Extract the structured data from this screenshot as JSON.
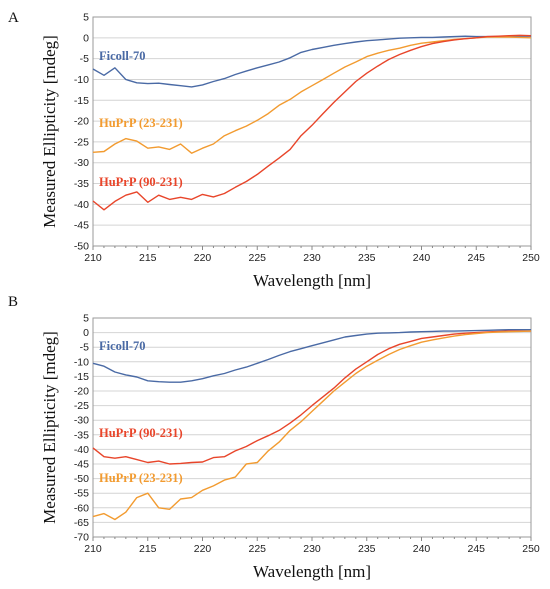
{
  "chart_data": [
    {
      "panel": "A",
      "type": "line",
      "xlabel": "Wavelength [nm]",
      "ylabel": "Measured Ellipticity [mdeg]",
      "xlim": [
        210,
        250
      ],
      "ylim": [
        -50,
        5
      ],
      "xticks": [
        "210",
        "215",
        "220",
        "225",
        "230",
        "235",
        "240",
        "245",
        "250"
      ],
      "yticks": [
        "5",
        "0",
        "-5",
        "-10",
        "-15",
        "-20",
        "-25",
        "-30",
        "-35",
        "-40",
        "-45",
        "-50"
      ],
      "x": [
        210,
        211,
        212,
        213,
        214,
        215,
        216,
        217,
        218,
        219,
        220,
        221,
        222,
        223,
        224,
        225,
        226,
        227,
        228,
        229,
        230,
        231,
        232,
        233,
        234,
        235,
        236,
        237,
        238,
        239,
        240,
        241,
        242,
        243,
        244,
        245,
        246,
        247,
        248,
        249,
        250
      ],
      "series": [
        {
          "name": "Ficoll-70",
          "color": "#4a6aa5",
          "values": [
            -7.5,
            -9,
            -7.2,
            -10,
            -10.8,
            -11,
            -10.9,
            -11.2,
            -11.5,
            -11.8,
            -11.3,
            -10.5,
            -9.8,
            -8.8,
            -8,
            -7.2,
            -6.5,
            -5.8,
            -4.8,
            -3.5,
            -2.8,
            -2.3,
            -1.8,
            -1.4,
            -1,
            -0.7,
            -0.5,
            -0.3,
            -0.1,
            0,
            0.1,
            0.1,
            0.2,
            0.3,
            0.4,
            0.3,
            0.3,
            0.3,
            0.4,
            0.4,
            0.4
          ]
        },
        {
          "name": "HuPrP (23-231)",
          "color": "#f29b30",
          "values": [
            -27.5,
            -27.3,
            -25.5,
            -24.2,
            -24.8,
            -26.5,
            -26.2,
            -26.8,
            -25.5,
            -27.7,
            -26.5,
            -25.5,
            -23.5,
            -22.3,
            -21.2,
            -19.8,
            -18.2,
            -16.2,
            -14.8,
            -13,
            -11.5,
            -10,
            -8.5,
            -7,
            -5.8,
            -4.5,
            -3.7,
            -3,
            -2.5,
            -1.8,
            -1.3,
            -1,
            -0.7,
            -0.4,
            -0.2,
            0,
            0.2,
            0.2,
            0.2,
            0.1,
            0
          ]
        },
        {
          "name": "HuPrP (90-231)",
          "color": "#e8452a",
          "values": [
            -39.2,
            -41.3,
            -39.3,
            -37.8,
            -37,
            -39.5,
            -37.8,
            -38.8,
            -38.3,
            -38.8,
            -37.6,
            -38.2,
            -37.4,
            -35.9,
            -34.5,
            -32.8,
            -30.8,
            -28.9,
            -26.8,
            -23.5,
            -21,
            -18.2,
            -15.5,
            -13,
            -10.5,
            -8.5,
            -6.8,
            -5.2,
            -4,
            -3,
            -2.1,
            -1.4,
            -0.9,
            -0.5,
            -0.2,
            0,
            0.3,
            0.4,
            0.5,
            0.6,
            0.5
          ]
        }
      ]
    },
    {
      "panel": "B",
      "type": "line",
      "xlabel": "Wavelength [nm]",
      "ylabel": "Measured Ellipticity [mdeg]",
      "xlim": [
        210,
        250
      ],
      "ylim": [
        -70,
        5
      ],
      "xticks": [
        "210",
        "215",
        "220",
        "225",
        "230",
        "235",
        "240",
        "245",
        "250"
      ],
      "yticks": [
        "5",
        "0",
        "-5",
        "-10",
        "-15",
        "-20",
        "-25",
        "-30",
        "-35",
        "-40",
        "-45",
        "-50",
        "-55",
        "-60",
        "-65",
        "-70"
      ],
      "x": [
        210,
        211,
        212,
        213,
        214,
        215,
        216,
        217,
        218,
        219,
        220,
        221,
        222,
        223,
        224,
        225,
        226,
        227,
        228,
        229,
        230,
        231,
        232,
        233,
        234,
        235,
        236,
        237,
        238,
        239,
        240,
        241,
        242,
        243,
        244,
        245,
        246,
        247,
        248,
        249,
        250
      ],
      "series": [
        {
          "name": "Ficoll-70",
          "color": "#4a6aa5",
          "values": [
            -10.5,
            -11.5,
            -13.5,
            -14.5,
            -15.2,
            -16.5,
            -16.8,
            -17,
            -17,
            -16.5,
            -15.8,
            -14.8,
            -14,
            -12.8,
            -11.8,
            -10.5,
            -9.2,
            -7.8,
            -6.5,
            -5.5,
            -4.5,
            -3.5,
            -2.5,
            -1.5,
            -1,
            -0.5,
            -0.2,
            -0.1,
            0,
            0.2,
            0.3,
            0.4,
            0.5,
            0.5,
            0.6,
            0.7,
            0.8,
            0.9,
            1,
            1,
            1
          ]
        },
        {
          "name": "HuPrP (90-231)",
          "color": "#e8452a",
          "values": [
            -39.5,
            -42.5,
            -43,
            -42.5,
            -43.5,
            -44.5,
            -44,
            -45,
            -44.8,
            -44.5,
            -44.3,
            -42.8,
            -42.5,
            -40.5,
            -39,
            -37,
            -35.3,
            -33.5,
            -31,
            -28.2,
            -25,
            -22,
            -19,
            -15.5,
            -12.5,
            -10,
            -7.5,
            -5.5,
            -4,
            -3,
            -2,
            -1.5,
            -1,
            -0.5,
            -0.2,
            0,
            0.2,
            0.4,
            0.5,
            0.5,
            0.5
          ]
        },
        {
          "name": "HuPrP (23-231)",
          "color": "#f29b30",
          "values": [
            -63,
            -62,
            -64,
            -61.5,
            -56.5,
            -55,
            -60,
            -60.5,
            -57,
            -56.5,
            -54,
            -52.5,
            -50.5,
            -49.5,
            -45,
            -44.5,
            -40.5,
            -37.5,
            -33.5,
            -30.5,
            -27,
            -23.5,
            -20,
            -17,
            -14,
            -11.5,
            -9.5,
            -7.5,
            -5.8,
            -4.5,
            -3.3,
            -2.5,
            -1.8,
            -1.2,
            -0.7,
            -0.3,
            0,
            0.2,
            0.3,
            0.4,
            0.5
          ]
        }
      ]
    }
  ]
}
